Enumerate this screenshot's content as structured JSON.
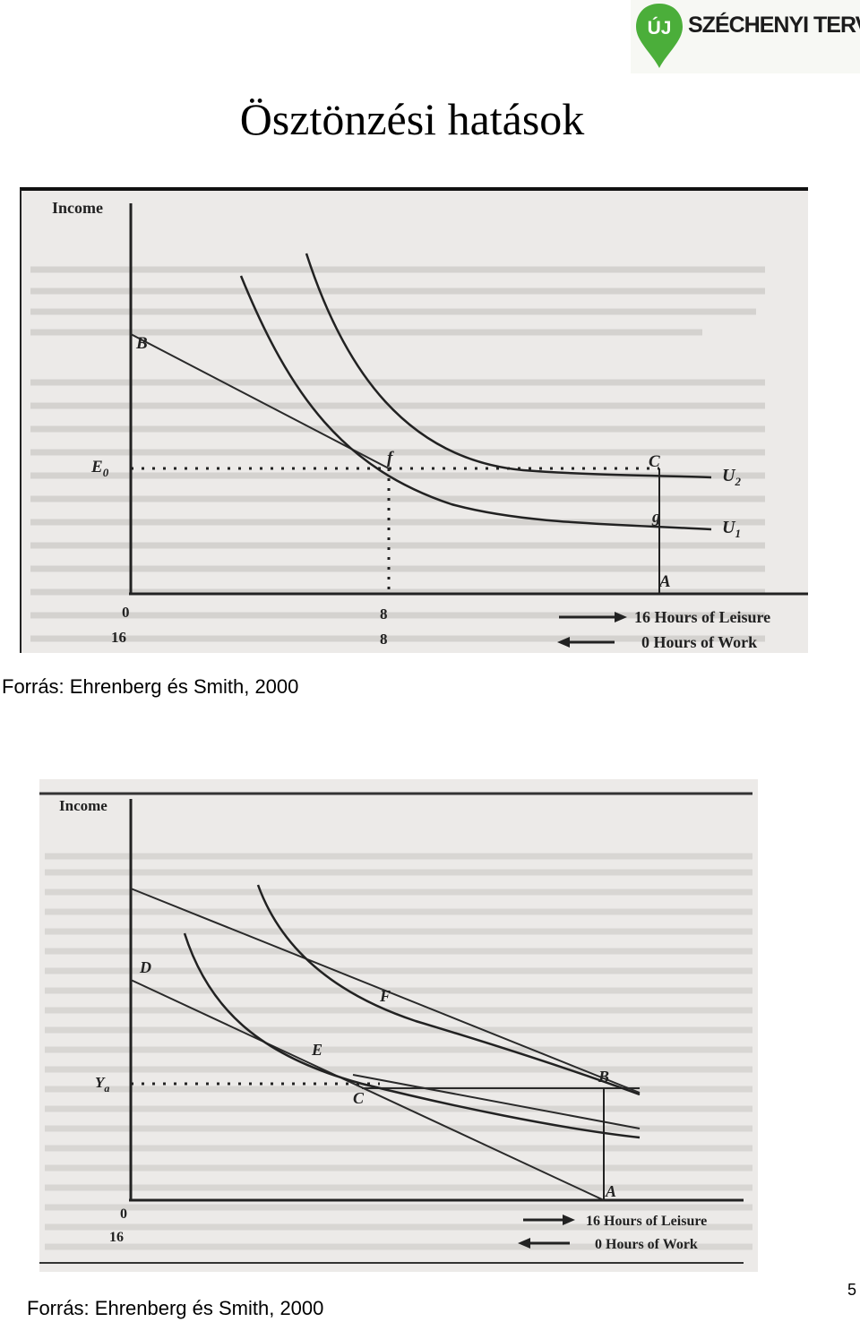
{
  "logo": {
    "prefix": "ÚJ",
    "text": "SZÉCHENYI TERV",
    "pin_color": "#4bae3a"
  },
  "title": "Ösztönzési hatások",
  "figure1": {
    "y_label": "Income",
    "points": {
      "B": "B",
      "E0": "E",
      "E0_sub": "0",
      "f": "f",
      "C": "C",
      "g": "g",
      "A": "A"
    },
    "curves": {
      "U2": "U",
      "U2_sub": "2",
      "U1": "U",
      "U1_sub": "1"
    },
    "ticks_top": [
      "0",
      "8"
    ],
    "ticks_bottom": [
      "16",
      "8"
    ],
    "arrow_right_label": "16 Hours of Leisure",
    "arrow_left_label": "0 Hours of Work"
  },
  "caption1": "Forrás: Ehrenberg és Smith, 2000",
  "figure2": {
    "y_label": "Income",
    "points": {
      "D": "D",
      "F": "F",
      "E": "E",
      "B": "B",
      "C": "C",
      "A": "A"
    },
    "vertical_label": "Y",
    "vertical_sub": "a",
    "ticks_top": [
      "0"
    ],
    "ticks_bottom": [
      "16"
    ],
    "arrow_right_label": "16 Hours of Leisure",
    "arrow_left_label": "0 Hours of Work"
  },
  "caption2": "Forrás: Ehrenberg és Smith, 2000",
  "page_number": "5"
}
